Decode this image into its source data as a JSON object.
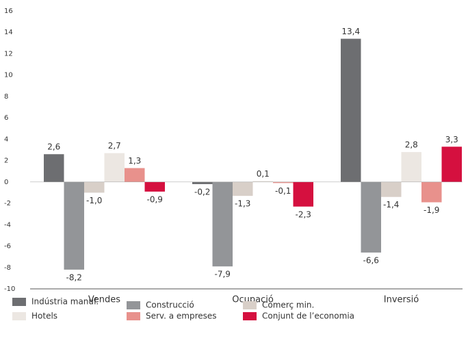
{
  "chart_data": {
    "type": "bar",
    "categories": [
      "Vendes",
      "Ocupació",
      "Inversió"
    ],
    "series": [
      {
        "name": "Indústria manuf.",
        "color": "#6d6e71",
        "values": [
          2.6,
          -0.2,
          13.4
        ],
        "value_labels": [
          "2,6",
          "-0,2",
          "13,4"
        ]
      },
      {
        "name": "Construcció",
        "color": "#939598",
        "values": [
          -8.2,
          -7.9,
          -6.6
        ],
        "value_labels": [
          "-8,2",
          "-7,9",
          "-6,6"
        ]
      },
      {
        "name": "Comerç min.",
        "color": "#d8cfc8",
        "values": [
          -1.0,
          -1.3,
          -1.4
        ],
        "value_labels": [
          "-1,0",
          "-1,3",
          "-1,4"
        ]
      },
      {
        "name": "Hotels",
        "color": "#ece7e2",
        "values": [
          2.7,
          0.1,
          2.8
        ],
        "value_labels": [
          "2,7",
          "0,1",
          "2,8"
        ]
      },
      {
        "name": "Serv. a empreses",
        "color": "#e8918c",
        "values": [
          1.3,
          -0.1,
          -1.9
        ],
        "value_labels": [
          "1,3",
          "-0,1",
          "-1,9"
        ]
      },
      {
        "name": "Conjunt de l’economia",
        "color": "#d5103f",
        "values": [
          -0.9,
          -2.3,
          3.3
        ],
        "value_labels": [
          "-0,9",
          "-2,3",
          "3,3"
        ]
      }
    ],
    "ylim": [
      -10,
      16
    ],
    "yticks": [
      -10,
      -8,
      -6,
      -4,
      -2,
      0,
      2,
      4,
      6,
      8,
      10,
      12,
      14,
      16
    ],
    "grid": false
  }
}
